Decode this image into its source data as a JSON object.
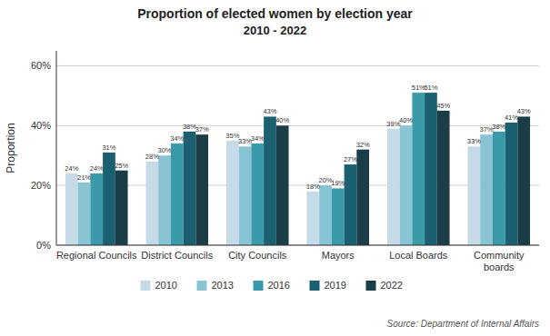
{
  "chart_data": {
    "type": "bar",
    "title": "Proportion of elected women by election year",
    "subtitle": "2010 - 2022",
    "categories": [
      "Regional Councils",
      "District Councils",
      "City Councils",
      "Mayors",
      "Local Boards",
      "Community\nboards"
    ],
    "series": [
      {
        "name": "2010",
        "color": "#c5dce8",
        "values": [
          24,
          28,
          35,
          18,
          39,
          33
        ],
        "value_labels": [
          "24%",
          "28%",
          "35%",
          "18%",
          "39%",
          "33%"
        ]
      },
      {
        "name": "2013",
        "color": "#89c4d4",
        "values": [
          21,
          30,
          33,
          20,
          40,
          37
        ],
        "value_labels": [
          "21%",
          "30%",
          "33%",
          "20%",
          "40%",
          "37%"
        ]
      },
      {
        "name": "2016",
        "color": "#3a9aaa",
        "values": [
          24,
          34,
          34,
          19,
          51,
          38
        ],
        "value_labels": [
          "24%",
          "34%",
          "34%",
          "19%",
          "51%",
          "38%"
        ]
      },
      {
        "name": "2019",
        "color": "#1a6070",
        "values": [
          31,
          38,
          43,
          27,
          51,
          41
        ],
        "value_labels": [
          "31%",
          "38%",
          "43%",
          "27%",
          "51%",
          "41%"
        ]
      },
      {
        "name": "2022",
        "color": "#1a3d47",
        "values": [
          25,
          37,
          40,
          32,
          45,
          43
        ],
        "value_labels": [
          "25%",
          "37%",
          "40%",
          "32%",
          "45%",
          "43%"
        ]
      }
    ],
    "y_label": "Proportion",
    "ylim": [
      0,
      65
    ],
    "yticks": [
      {
        "value": 0,
        "label": "0%"
      },
      {
        "value": 20,
        "label": "20%"
      },
      {
        "value": 40,
        "label": "40%"
      },
      {
        "value": 60,
        "label": "60%"
      }
    ],
    "grid": true,
    "legend": "bottom",
    "data_labels": true,
    "annotations": [
      "Source: Department of Internal Affairs"
    ]
  }
}
